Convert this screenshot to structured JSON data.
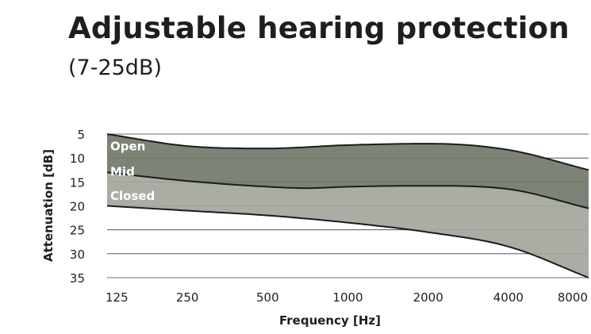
{
  "title": "Adjustable hearing protection",
  "subtitle": "(7-25dB)",
  "chart_data": {
    "type": "area",
    "title": "Adjustable hearing protection",
    "subtitle": "(7-25dB)",
    "xlabel": "Frequency [Hz]",
    "ylabel": "Attenuation [dB]",
    "x_scale": "log2",
    "categories": [
      "125",
      "250",
      "500",
      "1000",
      "2000",
      "4000",
      "8000"
    ],
    "x": [
      125,
      250,
      500,
      1000,
      2000,
      4000,
      8000
    ],
    "xlim": [
      125,
      8000
    ],
    "yticks": [
      5,
      10,
      15,
      20,
      25,
      30,
      35
    ],
    "ylim": [
      5,
      35
    ],
    "y_inverted": true,
    "grid": true,
    "boundaries": [
      {
        "name": "Open",
        "x": [
          125,
          250,
          500,
          1000,
          2000,
          4000,
          8000
        ],
        "values": [
          5,
          7.5,
          8,
          7.3,
          7,
          8.3,
          12.5
        ],
        "color": "#1c1c1c"
      },
      {
        "name": "Mid",
        "x": [
          125,
          250,
          500,
          700,
          1000,
          2000,
          4000,
          8000
        ],
        "values": [
          13,
          14.8,
          16,
          16.3,
          16,
          15.8,
          16.5,
          20.5
        ],
        "color": "#1c1c1c"
      },
      {
        "name": "Closed",
        "x": [
          125,
          250,
          500,
          1000,
          2000,
          4000,
          8000
        ],
        "values": [
          20,
          21,
          22,
          23.5,
          25.5,
          28.5,
          35
        ],
        "color": "#1c1c1c"
      }
    ],
    "bands": [
      {
        "name": "Open",
        "from": "Open",
        "to": "Mid",
        "color": "#737a6d"
      },
      {
        "name": "Mid",
        "from": "Mid",
        "to": "Closed",
        "color": "#a2a79d"
      }
    ],
    "labels": [
      {
        "text": "Open",
        "x": 125,
        "y": 7.6
      },
      {
        "text": "Mid",
        "x": 125,
        "y": 12.9
      },
      {
        "text": "Closed",
        "x": 125,
        "y": 17.9
      }
    ]
  }
}
